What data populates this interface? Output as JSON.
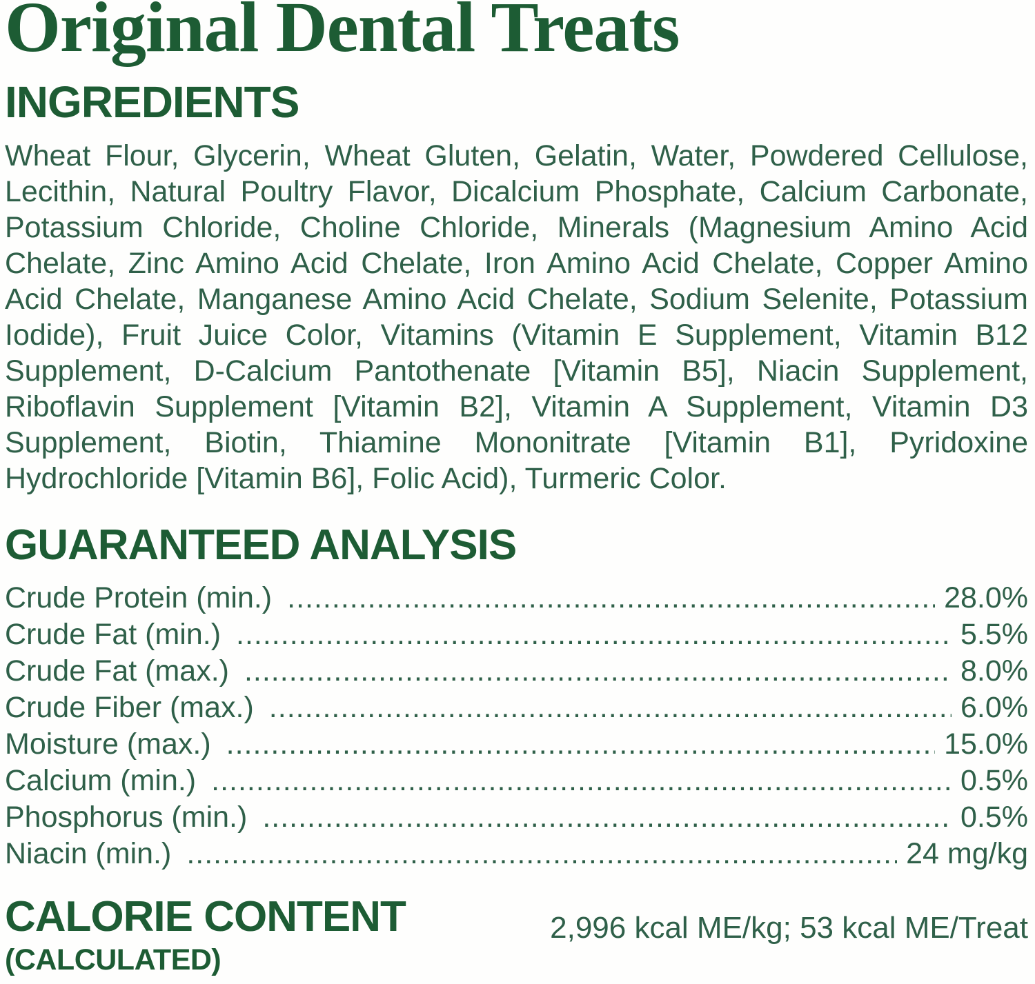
{
  "page": {
    "title": "Original Dental Treats"
  },
  "colors": {
    "heading_green": "#1d5c34",
    "body_green": "#2f6049",
    "background": "#fefefd"
  },
  "ingredients": {
    "heading": "INGREDIENTS",
    "lines": [
      "Wheat Flour, Glycerin, Wheat Gluten, Gelatin, Water, Powdered Cellulose,",
      "Lecithin, Natural Poultry Flavor, Dicalcium Phosphate, Calcium Carbonate,",
      "Potassium Chloride, Choline Chloride, Minerals (Magnesium Amino Acid",
      "Chelate, Zinc Amino Acid Chelate, Iron Amino Acid Chelate, Copper Amino",
      "Acid Chelate, Manganese Amino Acid Chelate, Sodium Selenite, Potassium",
      "Iodide), Fruit Juice Color, Vitamins (Vitamin E Supplement, Vitamin B12",
      "Supplement, D-Calcium Pantothenate [Vitamin B5], Niacin Supplement,",
      "Riboflavin Supplement [Vitamin B2], Vitamin A Supplement, Vitamin D3",
      "Supplement, Biotin, Thiamine Mononitrate [Vitamin B1], Pyridoxine",
      "Hydrochloride [Vitamin B6], Folic Acid), Turmeric Color."
    ]
  },
  "guaranteed_analysis": {
    "heading": "GUARANTEED ANALYSIS",
    "rows": [
      {
        "label": "Crude Protein (min.)",
        "value": "28.0%"
      },
      {
        "label": "Crude Fat (min.)",
        "value": "5.5%"
      },
      {
        "label": "Crude Fat (max.)",
        "value": "8.0%"
      },
      {
        "label": "Crude Fiber (max.)",
        "value": "6.0%"
      },
      {
        "label": "Moisture (max.)",
        "value": "15.0%"
      },
      {
        "label": "Calcium (min.)",
        "value": "0.5%"
      },
      {
        "label": "Phosphorus (min.)",
        "value": "0.5%"
      },
      {
        "label": "Niacin (min.)",
        "value": "24 mg/kg"
      }
    ]
  },
  "calorie_content": {
    "heading": "CALORIE CONTENT",
    "subheading": "(CALCULATED)",
    "value": "2,996 kcal ME/kg; 53 kcal ME/Treat"
  }
}
